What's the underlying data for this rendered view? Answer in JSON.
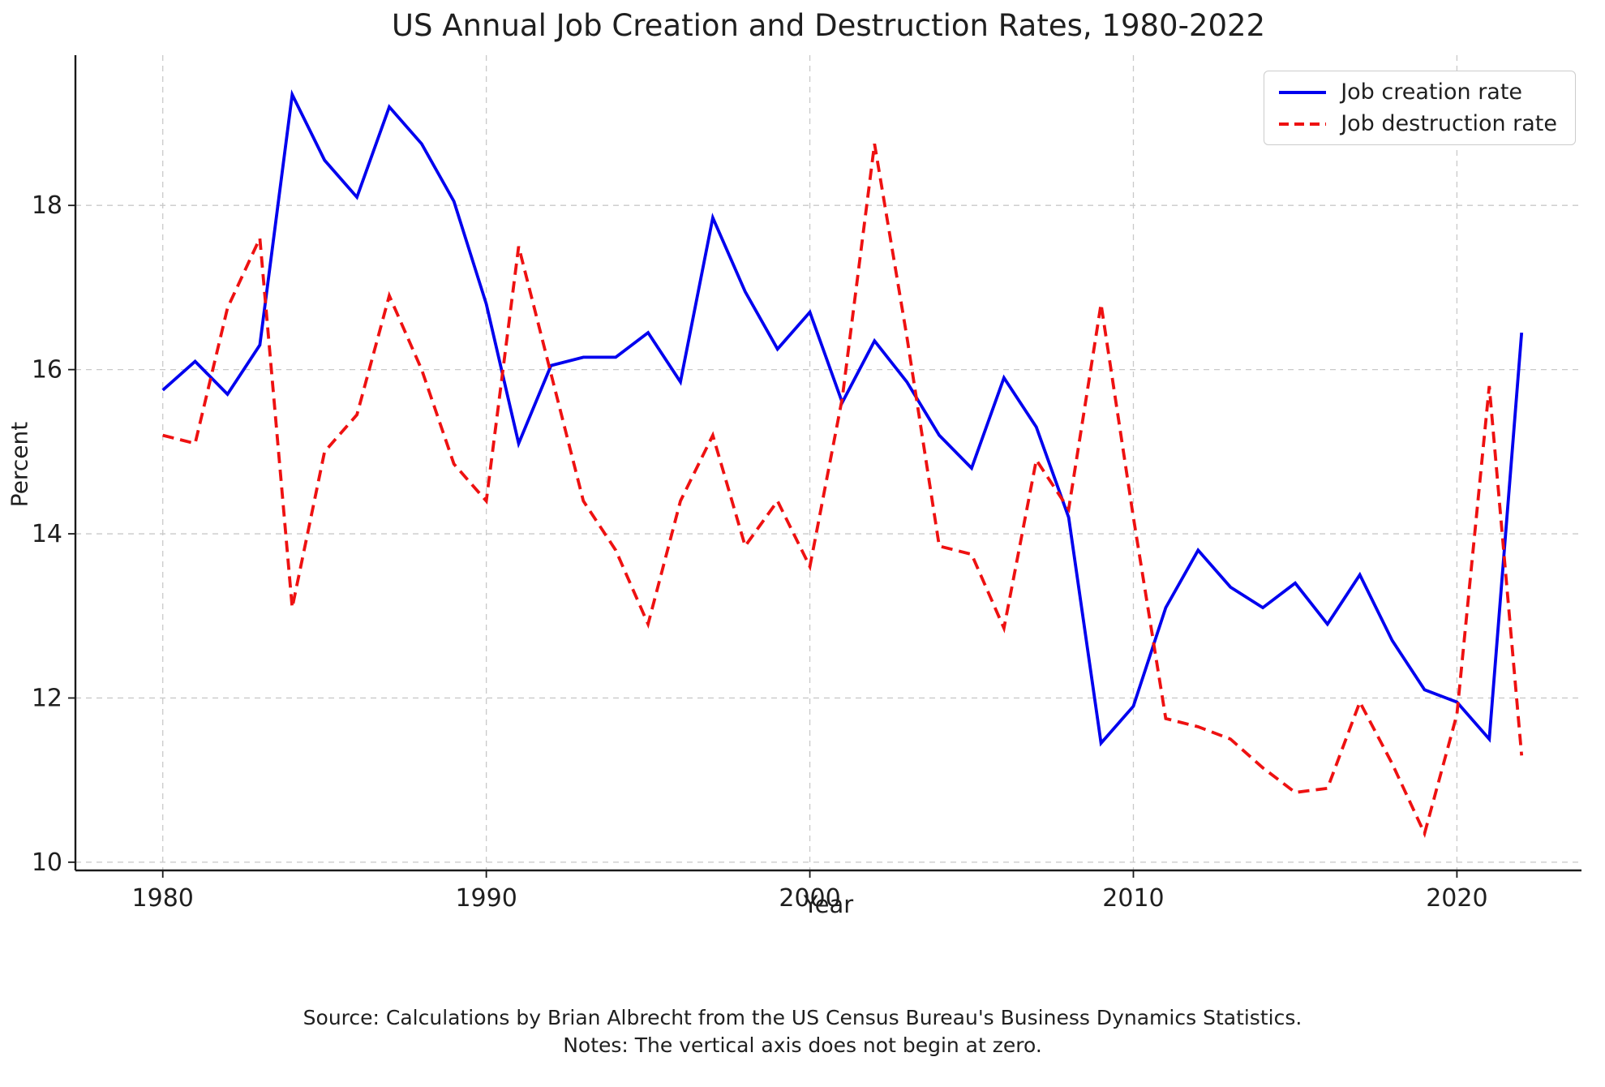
{
  "figure": {
    "title": "US Annual Job Creation and Destruction Rates, 1980-2022",
    "source_note": "Source: Calculations by Brian Albrecht from the US Census Bureau's Business Dynamics Statistics.",
    "axis_note": "Notes: The vertical axis does not begin at zero."
  },
  "chart_data": {
    "type": "line",
    "title": "US Annual Job Creation and Destruction Rates, 1980-2022",
    "xlabel": "Year",
    "ylabel": "Percent",
    "grid": true,
    "legend_position": "upper right",
    "x": [
      1980,
      1981,
      1982,
      1983,
      1984,
      1985,
      1986,
      1987,
      1988,
      1989,
      1990,
      1991,
      1992,
      1993,
      1994,
      1995,
      1996,
      1997,
      1998,
      1999,
      2000,
      2001,
      2002,
      2003,
      2004,
      2005,
      2006,
      2007,
      2008,
      2009,
      2010,
      2011,
      2012,
      2013,
      2014,
      2015,
      2016,
      2017,
      2018,
      2019,
      2020,
      2021,
      2022
    ],
    "series": [
      {
        "name": "Job creation rate",
        "color": "#0000ee",
        "style": "solid",
        "values": [
          15.75,
          16.1,
          15.7,
          16.3,
          19.35,
          18.55,
          18.1,
          19.2,
          18.75,
          18.05,
          16.8,
          15.1,
          16.05,
          16.15,
          16.15,
          16.45,
          15.85,
          17.85,
          16.95,
          16.25,
          16.7,
          15.6,
          16.35,
          15.85,
          15.2,
          14.8,
          15.9,
          15.3,
          14.2,
          11.45,
          11.9,
          13.1,
          13.8,
          13.35,
          13.1,
          13.4,
          12.9,
          13.5,
          12.7,
          12.1,
          11.95,
          11.5,
          16.45
        ]
      },
      {
        "name": "Job destruction rate",
        "color": "#ee1111",
        "style": "dashed",
        "values": [
          15.2,
          15.1,
          16.75,
          17.6,
          13.1,
          15.0,
          15.45,
          16.9,
          16.0,
          14.85,
          14.4,
          17.5,
          15.95,
          14.4,
          13.8,
          12.9,
          14.4,
          15.2,
          13.85,
          14.4,
          13.6,
          15.65,
          18.75,
          16.4,
          13.85,
          13.75,
          12.85,
          14.9,
          14.3,
          16.8,
          14.2,
          11.75,
          11.65,
          11.5,
          11.15,
          10.85,
          10.9,
          11.95,
          11.2,
          10.35,
          11.8,
          15.8,
          11.3
        ]
      }
    ],
    "xticks": [
      1980,
      1990,
      2000,
      2010,
      2020
    ],
    "yticks": [
      10,
      12,
      14,
      16,
      18
    ],
    "xlim": [
      1977.3,
      2023.85
    ],
    "ylim": [
      9.9,
      19.83
    ],
    "grid_color": "#c9c9c9",
    "text_color": "#1f1f1f"
  }
}
